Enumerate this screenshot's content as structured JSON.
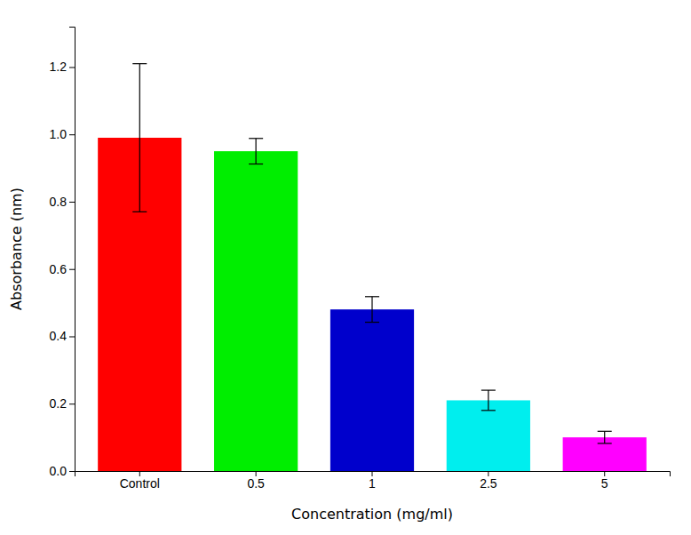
{
  "chart_data": {
    "type": "bar",
    "categories": [
      "Control",
      "0.5",
      "1",
      "2.5",
      "5"
    ],
    "values": [
      0.99,
      0.95,
      0.48,
      0.21,
      0.1
    ],
    "errors": [
      0.22,
      0.038,
      0.038,
      0.03,
      0.018
    ],
    "colors": [
      "#ff0000",
      "#00ee00",
      "#0000cc",
      "#00eeee",
      "#ff00ff"
    ],
    "xlabel": "Concentration (mg/ml)",
    "ylabel": "Absorbance (nm)",
    "ylim": [
      0,
      1.32
    ],
    "yticks": [
      {
        "value": 0,
        "label": "0.0"
      },
      0.2,
      0.4,
      0.6,
      0.8,
      {
        "value": 1,
        "label": "1.0"
      },
      1.2
    ],
    "grid": false
  }
}
